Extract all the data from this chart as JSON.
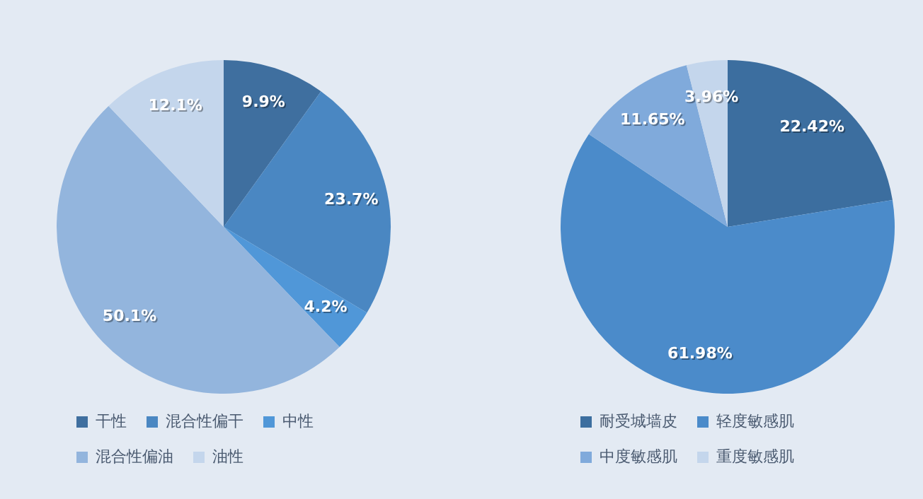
{
  "chart_data": [
    {
      "type": "pie",
      "categories": [
        "干性",
        "混合性偏干",
        "中性",
        "混合性偏油",
        "油性"
      ],
      "values": [
        9.9,
        23.7,
        4.2,
        50.1,
        12.1
      ],
      "colors": [
        "#3f6f9f",
        "#4a87c2",
        "#5097d8",
        "#93b5dd",
        "#c4d6ec"
      ],
      "value_labels": [
        "9.9%",
        "23.7%",
        "4.2%",
        "50.1%",
        "12.1%"
      ],
      "legend": "bottom"
    },
    {
      "type": "pie",
      "categories": [
        "耐受城墙皮",
        "轻度敏感肌",
        "中度敏感肌",
        "重度敏感肌"
      ],
      "values": [
        22.42,
        61.98,
        11.65,
        3.96
      ],
      "colors": [
        "#3c6e9f",
        "#4b8bca",
        "#80aadb",
        "#c4d6ec"
      ],
      "value_labels": [
        "22.42%",
        "61.98%",
        "11.65%",
        "3.96%"
      ],
      "legend": "bottom"
    }
  ]
}
